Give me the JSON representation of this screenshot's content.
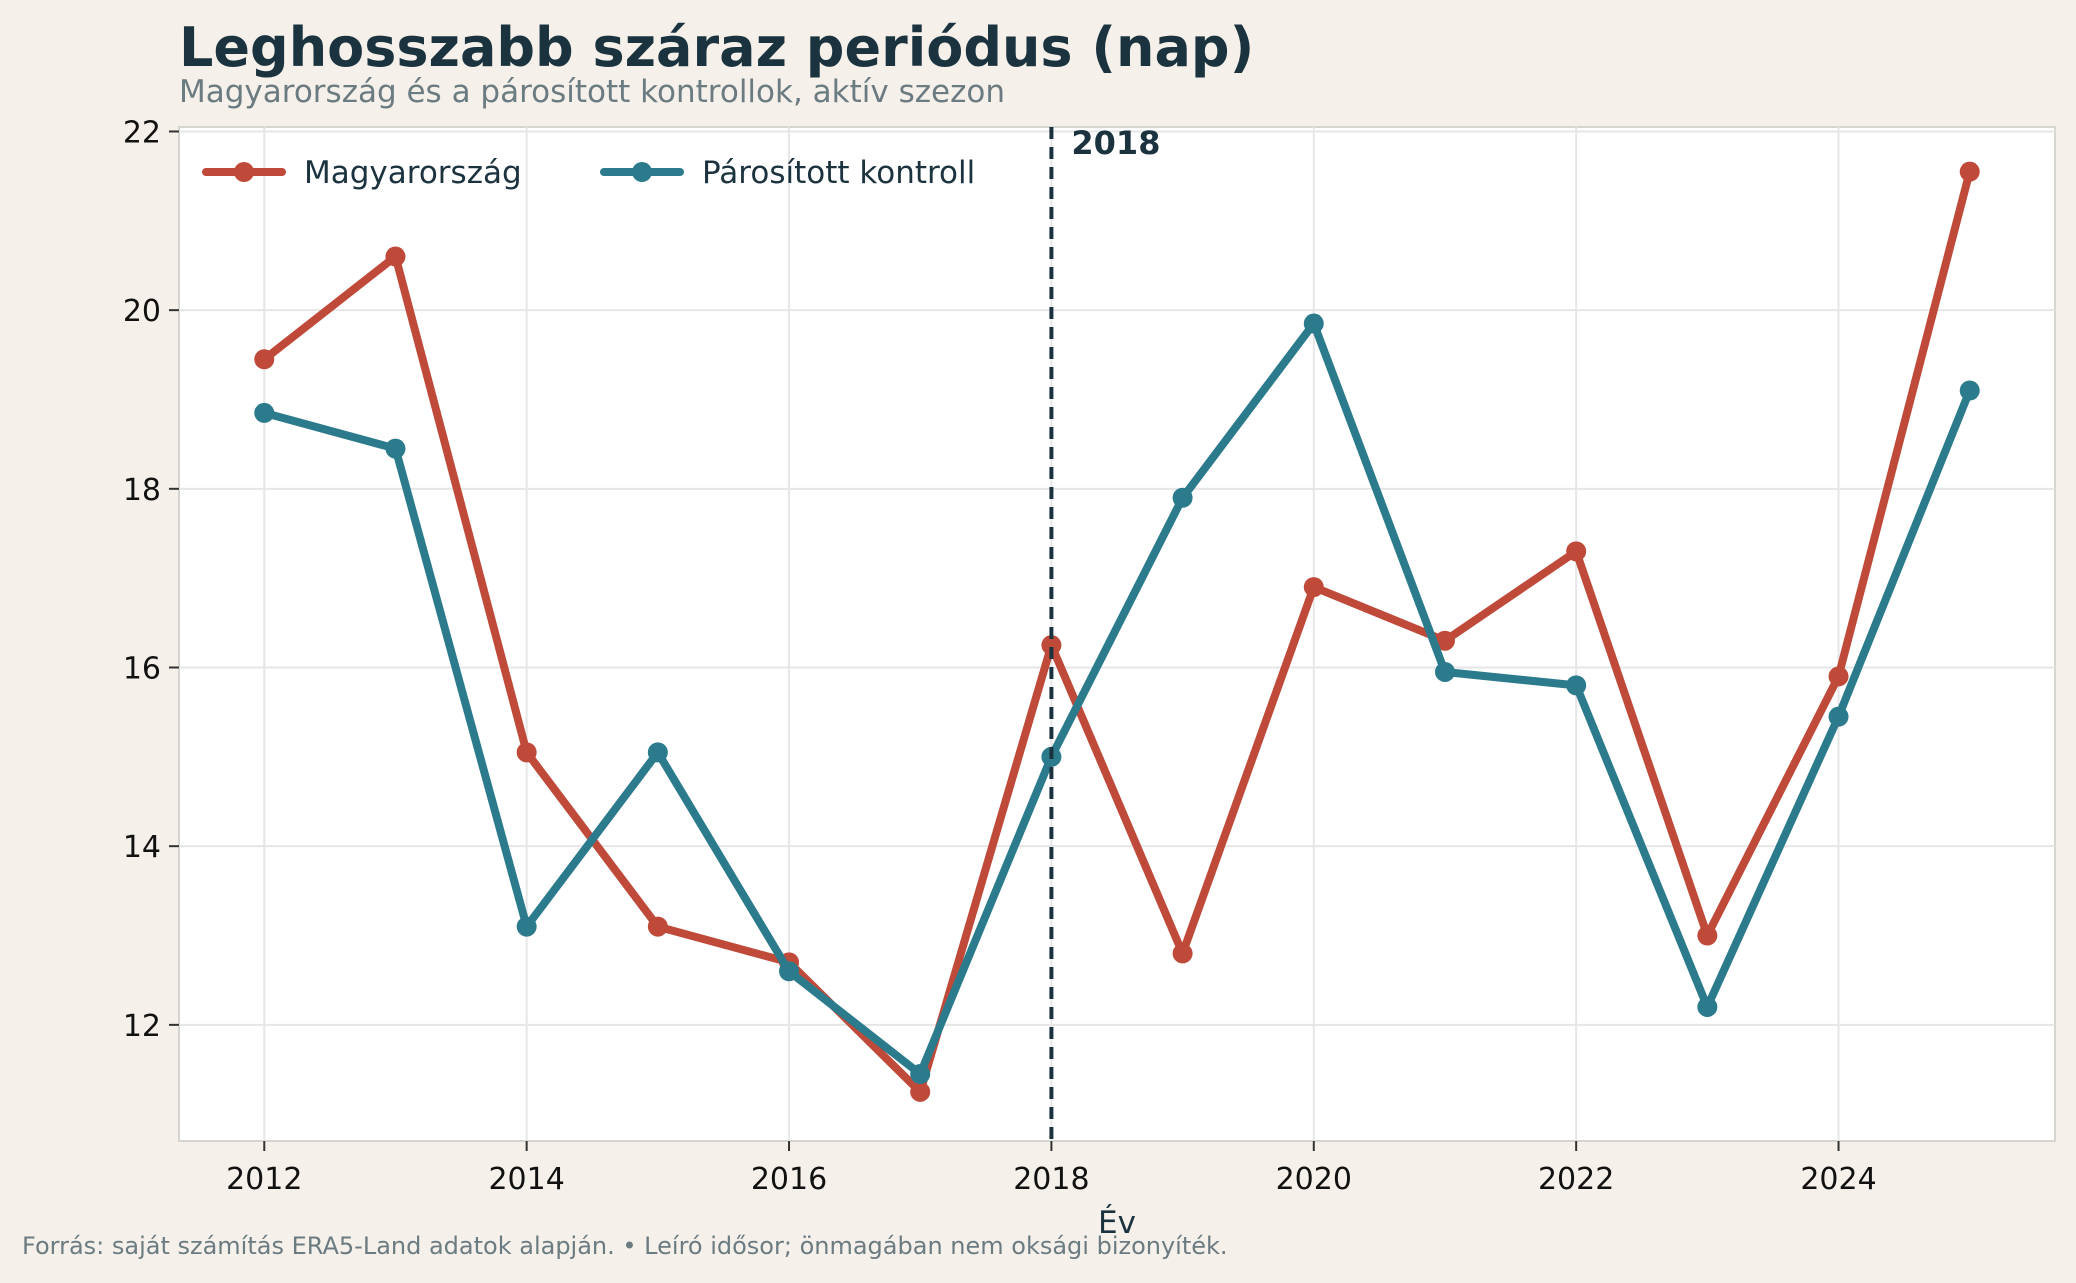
{
  "header": {
    "title": "Leghosszabb száraz periódus (nap)",
    "subtitle": "Magyarország és a párosított kontrollok, aktív szezon"
  },
  "footer": {
    "source": "Forrás: saját számítás ERA5-Land adatok alapján.  •  Leíró idősor; önmagában nem oksági bizonyíték."
  },
  "chart_data": {
    "type": "line",
    "title": "Leghosszabb száraz periódus (nap)",
    "subtitle": "Magyarország és a párosított kontrollok, aktív szezon",
    "xlabel": "Év",
    "ylabel": "",
    "x": [
      2012,
      2013,
      2014,
      2015,
      2016,
      2017,
      2018,
      2019,
      2020,
      2021,
      2022,
      2023,
      2024,
      2025
    ],
    "xlim": [
      2011.35,
      2025.65
    ],
    "ylim": [
      10.7,
      22.05
    ],
    "xticks": [
      2012,
      2014,
      2016,
      2018,
      2020,
      2022,
      2024
    ],
    "yticks": [
      12,
      14,
      16,
      18,
      20,
      22
    ],
    "grid": true,
    "legend_position": "top-left",
    "series": [
      {
        "name": "Magyarország",
        "color": "#c04a3a",
        "values": [
          19.45,
          20.6,
          15.05,
          13.1,
          12.7,
          11.25,
          16.25,
          12.8,
          16.9,
          16.3,
          17.3,
          13.0,
          15.9,
          21.55
        ]
      },
      {
        "name": "Párosított kontroll",
        "color": "#2b7b8c",
        "values": [
          18.85,
          18.45,
          13.1,
          15.05,
          12.6,
          11.45,
          15.0,
          17.9,
          19.85,
          15.95,
          15.8,
          12.2,
          15.45,
          19.1
        ]
      }
    ],
    "annotations": [
      {
        "type": "vline",
        "x": 2018,
        "label": "2018",
        "color": "#1b333f"
      }
    ]
  }
}
